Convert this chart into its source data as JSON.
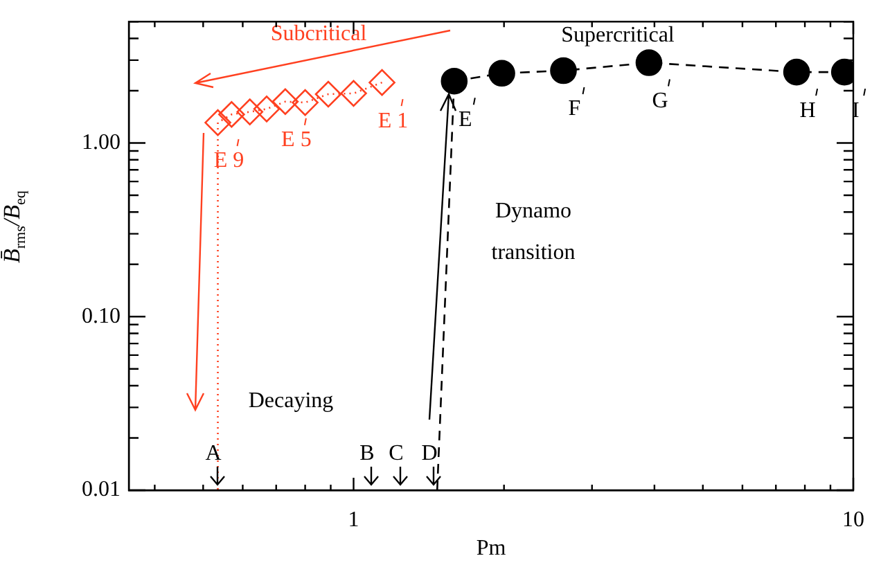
{
  "chart_data": {
    "type": "line",
    "xlabel": "Pm",
    "ylabel": "B̄$_{rms}$/B$_{eq}$",
    "log": "xy",
    "xlim": [
      0.355,
      10
    ],
    "ylim": [
      0.01,
      5
    ],
    "xticks": [
      {
        "value": 0.4,
        "label": null
      },
      {
        "value": 0.5,
        "label": null
      },
      {
        "value": 0.6,
        "label": null
      },
      {
        "value": 0.7,
        "label": null
      },
      {
        "value": 0.8,
        "label": null
      },
      {
        "value": 0.9,
        "label": null
      },
      1,
      {
        "value": 2,
        "label": null
      },
      {
        "value": 3,
        "label": null
      },
      {
        "value": 4,
        "label": null
      },
      {
        "value": 5,
        "label": null
      },
      {
        "value": 6,
        "label": null
      },
      {
        "value": 7,
        "label": null
      },
      {
        "value": 8,
        "label": null
      },
      {
        "value": 9,
        "label": null
      },
      10
    ],
    "yticks": [
      {
        "value": 0.01,
        "label": "0.01"
      },
      {
        "value": 0.02,
        "label": null
      },
      {
        "value": 0.03,
        "label": null
      },
      {
        "value": 0.04,
        "label": null
      },
      {
        "value": 0.05,
        "label": null
      },
      {
        "value": 0.06,
        "label": null
      },
      {
        "value": 0.07,
        "label": null
      },
      {
        "value": 0.08,
        "label": null
      },
      {
        "value": 0.09,
        "label": null
      },
      {
        "value": 0.1,
        "label": "0.10"
      },
      {
        "value": 0.2,
        "label": null
      },
      {
        "value": 0.3,
        "label": null
      },
      {
        "value": 0.4,
        "label": null
      },
      {
        "value": 0.5,
        "label": null
      },
      {
        "value": 0.6,
        "label": null
      },
      {
        "value": 0.7,
        "label": null
      },
      {
        "value": 0.8,
        "label": null
      },
      {
        "value": 0.9,
        "label": null
      },
      {
        "value": 1,
        "label": "1.00"
      },
      {
        "value": 2,
        "label": null
      },
      {
        "value": 3,
        "label": null
      },
      {
        "value": 4,
        "label": null
      },
      {
        "value": 5,
        "label": null
      }
    ],
    "series": [
      {
        "color": "#ff4020",
        "marker": "diamond",
        "line_style": "dotted",
        "x": [
          1.14,
          1.0,
          0.89,
          0.8,
          0.73,
          0.67,
          0.62,
          0.57,
          0.535
        ],
        "values": [
          2.23,
          1.93,
          1.91,
          1.71,
          1.73,
          1.57,
          1.51,
          1.46,
          1.31
        ]
      },
      {
        "color": "#000000",
        "marker": "circle",
        "line_style": "dashed",
        "x": [
          1.59,
          1.98,
          2.63,
          3.9,
          7.7,
          9.6
        ],
        "values": [
          2.27,
          2.52,
          2.61,
          2.9,
          2.56,
          2.56
        ]
      },
      {
        "color": "#ff4020",
        "marker": "none",
        "line_style": "dotted",
        "x": [
          0.535,
          0.535
        ],
        "values": [
          1.31,
          0.01
        ]
      },
      {
        "color": "#000000",
        "marker": "none",
        "line_style": "dashed",
        "x": [
          1.47,
          1.59
        ],
        "values": [
          0.01,
          2.27
        ]
      }
    ],
    "annotations": [
      "Subcritical",
      "Supercritical",
      "Dynamo\ntransition",
      "Decaying",
      {
        "text": "E 1",
        "x": 1.14,
        "y": 2.23
      },
      {
        "text": "E 5",
        "x": 0.73,
        "y": 1.73
      },
      {
        "text": "E 9",
        "x": 0.535,
        "y": 1.31
      },
      {
        "text": "E",
        "x": 1.59,
        "y": 2.27
      },
      {
        "text": "F",
        "x": 2.63,
        "y": 2.61
      },
      {
        "text": "G",
        "x": 3.9,
        "y": 2.9
      },
      {
        "text": "H",
        "x": 7.7,
        "y": 2.56
      },
      {
        "text": "I",
        "x": 9.6,
        "y": 2.56
      },
      "A",
      "B",
      "C",
      "D"
    ],
    "legend": false
  }
}
